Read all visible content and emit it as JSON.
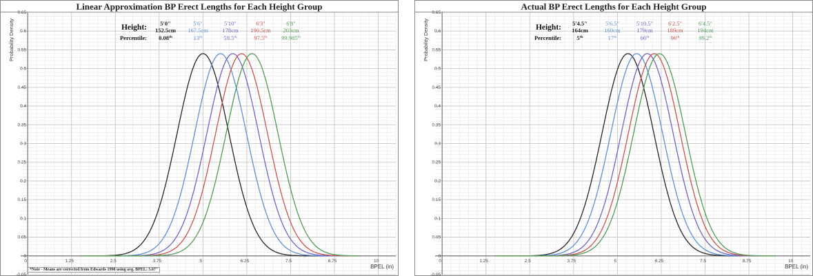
{
  "chart_data": [
    {
      "type": "line",
      "title": "Linear Approximation BP Erect Lengths for Each Height Group",
      "ylabel": "Probability Density",
      "xlabel": "BPEL (in)",
      "xlim": [
        -0.2,
        10.5
      ],
      "ylim": [
        -0.05,
        0.65
      ],
      "xticks": [
        "0",
        "1.25",
        "2.5",
        "3.75",
        "5",
        "6.25",
        "7.5",
        "8.75",
        "10"
      ],
      "yticks": [
        "0.65",
        "0.6",
        "0.55",
        "0.5",
        "0.45",
        "0.4",
        "0.35",
        "0.3",
        "0.25",
        "0.2",
        "0.15",
        "0.1",
        "0.05",
        "0",
        "-0.05"
      ],
      "grid": true,
      "legend_labels": {
        "height": "Height:",
        "percentile": "Percentile:"
      },
      "series": [
        {
          "name": "5'0\"",
          "cm": "152.5cm",
          "percentile": "0.08",
          "sup": "th",
          "color": "#222222",
          "mean": 5.0,
          "peak": 0.54
        },
        {
          "name": "5'6\"",
          "cm": "167.5cm",
          "percentile": "13",
          "sup": "th",
          "color": "#5b8fd1",
          "mean": 5.5,
          "peak": 0.54
        },
        {
          "name": "5'10\"",
          "cm": "178cm",
          "percentile": "59.5",
          "sup": "th",
          "color": "#7062c4",
          "mean": 5.85,
          "peak": 0.54
        },
        {
          "name": "6'3\"",
          "cm": "190.5cm",
          "percentile": "97.5",
          "sup": "th",
          "color": "#c9514e",
          "mean": 6.1,
          "peak": 0.54
        },
        {
          "name": "6'8\"",
          "cm": "203cm",
          "percentile": "99.985",
          "sup": "th",
          "color": "#4f9a55",
          "mean": 6.4,
          "peak": 0.54
        }
      ],
      "note": "*Note - Means are corrected from Edwards 1998 using avg. BPEL: 5.67\""
    },
    {
      "type": "line",
      "title": "Actual BP Erect Lengths for Each Height Group",
      "ylabel": "Probability Density",
      "xlabel": "BPEL (in)",
      "xlim": [
        -0.2,
        10.5
      ],
      "ylim": [
        -0.05,
        0.65
      ],
      "xticks": [
        "0",
        "1.25",
        "2.5",
        "3.75",
        "5",
        "6.25",
        "7.5",
        "8.75",
        "10"
      ],
      "yticks": [
        "0.65",
        "0.6",
        "0.55",
        "0.5",
        "0.45",
        "0.4",
        "0.35",
        "0.3",
        "0.25",
        "0.2",
        "0.15",
        "0.1",
        "0.05",
        "0",
        "-0.05"
      ],
      "grid": true,
      "legend_labels": {
        "height": "Height:",
        "percentile": "Percentile:"
      },
      "series": [
        {
          "name": "5'4.5\"",
          "cm": "164cm",
          "percentile": "5",
          "sup": "th",
          "color": "#222222",
          "mean": 5.3,
          "peak": 0.54
        },
        {
          "name": "5'6.5\"",
          "cm": "169cm",
          "percentile": "17",
          "sup": "th",
          "color": "#5b8fd1",
          "mean": 5.55,
          "peak": 0.54
        },
        {
          "name": "5'10.5\"",
          "cm": "179cm",
          "percentile": "66",
          "sup": "th",
          "color": "#7062c4",
          "mean": 5.85,
          "peak": 0.54
        },
        {
          "name": "6'2.5\"",
          "cm": "189cm",
          "percentile": "96",
          "sup": "th",
          "color": "#c9514e",
          "mean": 6.05,
          "peak": 0.54
        },
        {
          "name": "6'4.5\"",
          "cm": "194cm",
          "percentile": "99.2",
          "sup": "th",
          "color": "#4f9a55",
          "mean": 6.2,
          "peak": 0.54
        }
      ]
    }
  ]
}
